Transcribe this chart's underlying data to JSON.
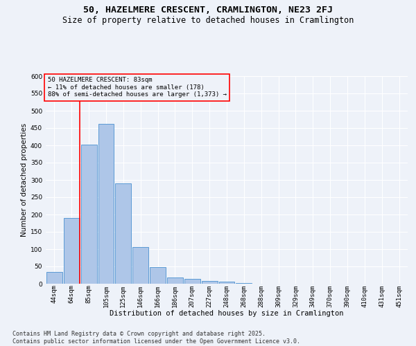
{
  "title": "50, HAZELMERE CRESCENT, CRAMLINGTON, NE23 2FJ",
  "subtitle": "Size of property relative to detached houses in Cramlington",
  "xlabel": "Distribution of detached houses by size in Cramlington",
  "ylabel": "Number of detached properties",
  "bin_labels": [
    "44sqm",
    "64sqm",
    "85sqm",
    "105sqm",
    "125sqm",
    "146sqm",
    "166sqm",
    "186sqm",
    "207sqm",
    "227sqm",
    "248sqm",
    "268sqm",
    "288sqm",
    "309sqm",
    "329sqm",
    "349sqm",
    "370sqm",
    "390sqm",
    "410sqm",
    "431sqm",
    "451sqm"
  ],
  "bar_values": [
    35,
    190,
    402,
    463,
    291,
    106,
    48,
    18,
    14,
    9,
    6,
    2,
    1,
    0,
    1,
    0,
    0,
    0,
    0,
    1,
    1
  ],
  "bar_color": "#aec6e8",
  "bar_edge_color": "#5b9bd5",
  "property_bin_index": 1,
  "annotation_line1": "50 HAZELMERE CRESCENT: 83sqm",
  "annotation_line2": "← 11% of detached houses are smaller (178)",
  "annotation_line3": "88% of semi-detached houses are larger (1,373) →",
  "footer_line1": "Contains HM Land Registry data © Crown copyright and database right 2025.",
  "footer_line2": "Contains public sector information licensed under the Open Government Licence v3.0.",
  "ylim": [
    0,
    600
  ],
  "yticks": [
    0,
    50,
    100,
    150,
    200,
    250,
    300,
    350,
    400,
    450,
    500,
    550,
    600
  ],
  "bg_color": "#eef2f9",
  "grid_color": "#ffffff",
  "title_fontsize": 9.5,
  "subtitle_fontsize": 8.5,
  "axis_label_fontsize": 7.5,
  "tick_fontsize": 6.5,
  "annotation_fontsize": 6.5,
  "footer_fontsize": 6
}
